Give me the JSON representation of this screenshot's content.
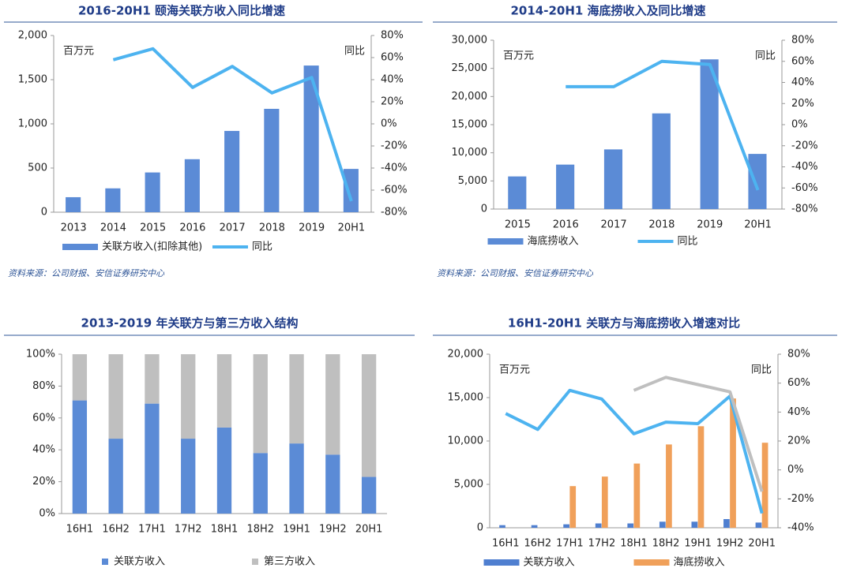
{
  "chart_data": [
    {
      "type": "bar",
      "title": "2016-20H1 颐海关联方收入同比增速",
      "unit_label": "百万元",
      "y2_label": "同比",
      "categories": [
        "2013",
        "2014",
        "2015",
        "2016",
        "2017",
        "2018",
        "2019",
        "20H1"
      ],
      "series": [
        {
          "name": "关联方收入(扣除其他)",
          "color": "#5b8bd6",
          "values": [
            170,
            270,
            450,
            600,
            920,
            1170,
            1660,
            490
          ]
        },
        {
          "name": "同比",
          "color": "#4db3f0",
          "type": "line",
          "axis": "y2",
          "values": [
            null,
            58,
            68,
            33,
            52,
            28,
            42,
            -70
          ]
        }
      ],
      "ylim": [
        0,
        2000
      ],
      "yticks": [
        0,
        500,
        {
          "value": 1000,
          "label": "1,000"
        },
        {
          "value": 1500,
          "label": "1,500"
        },
        {
          "value": 2000,
          "label": "2,000"
        }
      ],
      "y2lim": [
        -80,
        80
      ],
      "y2ticks": [
        {
          "value": -80,
          "label": "-80%"
        },
        {
          "value": -60,
          "label": "-60%"
        },
        {
          "value": -40,
          "label": "-40%"
        },
        {
          "value": -20,
          "label": "-20%"
        },
        {
          "value": 0,
          "label": "0%"
        },
        {
          "value": 20,
          "label": "20%"
        },
        {
          "value": 40,
          "label": "40%"
        },
        {
          "value": 60,
          "label": "60%"
        },
        {
          "value": 80,
          "label": "80%"
        }
      ],
      "source": "资料来源：公司财报、安信证券研究中心"
    },
    {
      "type": "bar",
      "title": "2014-20H1 海底捞收入及同比增速",
      "unit_label": "百万元",
      "y2_label": "同比",
      "categories": [
        "2015",
        "2016",
        "2017",
        "2018",
        "2019",
        "20H1"
      ],
      "series": [
        {
          "name": "海底捞收入",
          "color": "#5b8bd6",
          "values": [
            5800,
            7900,
            10600,
            17000,
            26600,
            9800
          ]
        },
        {
          "name": "同比",
          "color": "#4db3f0",
          "type": "line",
          "axis": "y2",
          "values": [
            null,
            36,
            36,
            60,
            57,
            -62
          ]
        }
      ],
      "ylim": [
        0,
        30000
      ],
      "yticks": [
        0,
        {
          "value": 5000,
          "label": "5,000"
        },
        {
          "value": 10000,
          "label": "10,000"
        },
        {
          "value": 15000,
          "label": "15,000"
        },
        {
          "value": 20000,
          "label": "20,000"
        },
        {
          "value": 25000,
          "label": "25,000"
        },
        {
          "value": 30000,
          "label": "30,000"
        }
      ],
      "y2lim": [
        -80,
        80
      ],
      "y2ticks": [
        {
          "value": -80,
          "label": "-80%"
        },
        {
          "value": -60,
          "label": "-60%"
        },
        {
          "value": -40,
          "label": "-40%"
        },
        {
          "value": -20,
          "label": "-20%"
        },
        {
          "value": 0,
          "label": "0%"
        },
        {
          "value": 20,
          "label": "20%"
        },
        {
          "value": 40,
          "label": "40%"
        },
        {
          "value": 60,
          "label": "60%"
        },
        {
          "value": 80,
          "label": "80%"
        }
      ],
      "source": "资料来源：公司财报、安信证券研究中心"
    },
    {
      "type": "stacked_bar",
      "title": "2013-2019 年关联方与第三方收入结构",
      "categories": [
        "16H1",
        "16H2",
        "17H1",
        "17H2",
        "18H1",
        "18H2",
        "19H1",
        "19H2",
        "20H1"
      ],
      "series": [
        {
          "name": "关联方收入",
          "color": "#5b8bd6",
          "values": [
            71,
            47,
            69,
            47,
            54,
            38,
            44,
            37,
            23
          ]
        },
        {
          "name": "第三方收入",
          "color": "#bfbfbf",
          "values": [
            29,
            53,
            31,
            53,
            46,
            62,
            56,
            63,
            77
          ]
        }
      ],
      "ylim": [
        0,
        100
      ],
      "yticks": [
        {
          "value": 0,
          "label": "0%"
        },
        {
          "value": 20,
          "label": "20%"
        },
        {
          "value": 40,
          "label": "40%"
        },
        {
          "value": 60,
          "label": "60%"
        },
        {
          "value": 80,
          "label": "80%"
        },
        {
          "value": 100,
          "label": "100%"
        }
      ]
    },
    {
      "type": "bar",
      "title": "16H1-20H1 关联方与海底捞收入增速对比",
      "unit_label": "百万元",
      "y2_label": "同比",
      "categories": [
        "16H1",
        "16H2",
        "17H1",
        "17H2",
        "18H1",
        "18H2",
        "19H1",
        "19H2",
        "20H1"
      ],
      "series": [
        {
          "name": "关联方收入",
          "color": "#4f7fd0",
          "values": [
            300,
            300,
            400,
            500,
            500,
            700,
            700,
            1000,
            600
          ]
        },
        {
          "name": "海底捞收入",
          "color": "#f0a05a",
          "values": [
            null,
            null,
            4800,
            5900,
            7400,
            9600,
            11700,
            14900,
            9800
          ]
        },
        {
          "color": "#4db3f0",
          "type": "line",
          "axis": "y2",
          "values": [
            39,
            28,
            55,
            49,
            25,
            33,
            32,
            51,
            -30
          ]
        },
        {
          "color": "#bfbfbf",
          "type": "line",
          "axis": "y2",
          "values": [
            null,
            null,
            null,
            null,
            55,
            64,
            59,
            54,
            -15
          ]
        }
      ],
      "ylim": [
        0,
        20000
      ],
      "yticks": [
        0,
        {
          "value": 5000,
          "label": "5,000"
        },
        {
          "value": 10000,
          "label": "10,000"
        },
        {
          "value": 15000,
          "label": "15,000"
        },
        {
          "value": 20000,
          "label": "20,000"
        }
      ],
      "y2lim": [
        -40,
        80
      ],
      "y2ticks": [
        {
          "value": -40,
          "label": "-40%"
        },
        {
          "value": -20,
          "label": "-20%"
        },
        {
          "value": 0,
          "label": "0%"
        },
        {
          "value": 20,
          "label": "20%"
        },
        {
          "value": 40,
          "label": "40%"
        },
        {
          "value": 60,
          "label": "60%"
        },
        {
          "value": 80,
          "label": "80%"
        }
      ]
    }
  ]
}
